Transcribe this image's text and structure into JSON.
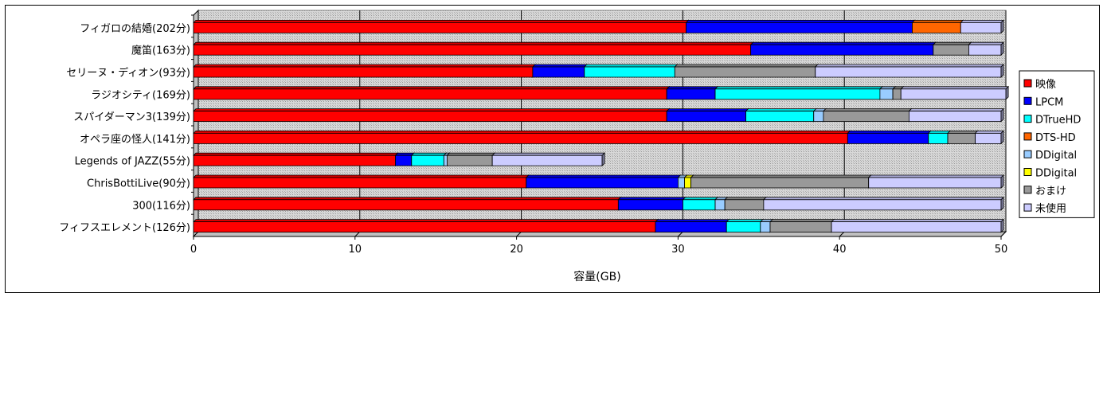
{
  "chart_data": {
    "type": "bar",
    "orientation": "horizontal",
    "stacked": true,
    "xlabel": "容量(GB)",
    "ylabel": "",
    "xlim": [
      0,
      50
    ],
    "xticks": [
      0,
      10,
      20,
      30,
      40,
      50
    ],
    "grid": true,
    "legend_position": "right",
    "categories": [
      "フィガロの結婚(202分)",
      "魔笛(163分)",
      "セリーヌ・ディオン(93分)",
      "ラジオシティ(169分)",
      "スパイダーマン3(139分)",
      "オペラ座の怪人(141分)",
      "Legends of JAZZ(55分)",
      "ChrisBottiLive(90分)",
      "300(116分)",
      "フィフスエレメント(126分)"
    ],
    "series": [
      {
        "name": "映像",
        "color": "#ff0000",
        "values": [
          30.5,
          34.5,
          21.0,
          29.3,
          29.3,
          40.5,
          12.5,
          20.6,
          26.3,
          28.6
        ]
      },
      {
        "name": "LPCM",
        "color": "#0000ff",
        "values": [
          14.0,
          11.3,
          3.2,
          3.0,
          4.9,
          5.0,
          1.0,
          9.4,
          4.0,
          4.4
        ]
      },
      {
        "name": "DTrueHD",
        "color": "#00ffff",
        "values": [
          0,
          0,
          5.6,
          10.2,
          4.2,
          1.2,
          2.0,
          0,
          2.0,
          2.1
        ]
      },
      {
        "name": "DTS-HD",
        "color": "#ff6600",
        "values": [
          3.0,
          0,
          0,
          0,
          0,
          0,
          0,
          0,
          0,
          0
        ]
      },
      {
        "name": "DDigital",
        "color": "#99ccff",
        "values": [
          0,
          0,
          0,
          0.8,
          0.6,
          0,
          0.2,
          0.4,
          0.6,
          0.6
        ]
      },
      {
        "name": "DDigital",
        "color": "#ffff00",
        "values": [
          0,
          0,
          0,
          0,
          0,
          0,
          0,
          0.4,
          0,
          0
        ]
      },
      {
        "name": "おまけ",
        "color": "#999999",
        "values": [
          0,
          2.2,
          8.7,
          0.5,
          5.3,
          1.7,
          2.8,
          11.0,
          2.4,
          3.8
        ]
      },
      {
        "name": "未使用",
        "color": "#ccccff",
        "values": [
          2.5,
          2.0,
          11.5,
          6.5,
          5.7,
          1.6,
          6.8,
          8.2,
          14.7,
          10.5
        ]
      }
    ]
  }
}
